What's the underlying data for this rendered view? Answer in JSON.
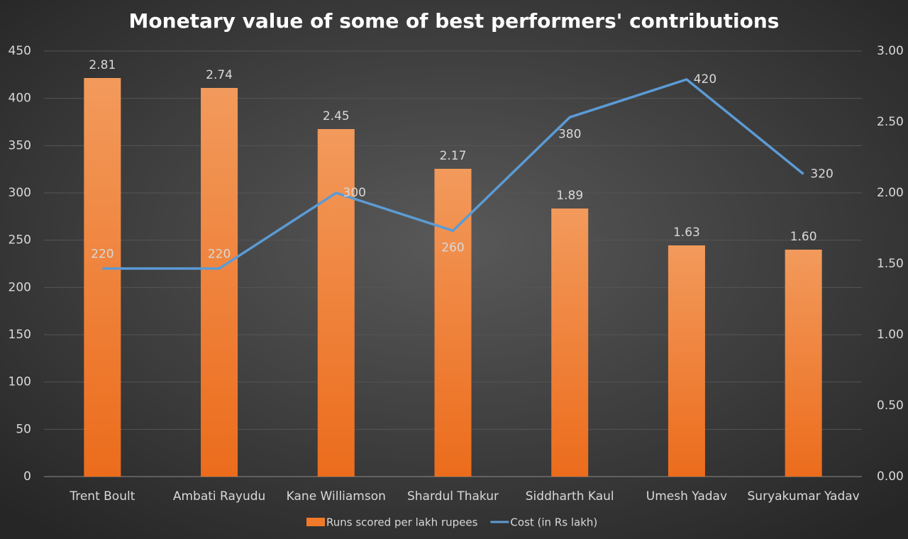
{
  "chart_data": {
    "type": "bar-line",
    "title": "Monetary value of some of best performers' contributions",
    "categories": [
      "Trent Boult",
      "Ambati Rayudu",
      "Kane Williamson",
      "Shardul Thakur",
      "Siddharth Kaul",
      "Umesh Yadav",
      "Suryakumar Yadav"
    ],
    "series": [
      {
        "name": "Runs scored per lakh rupees",
        "type": "bar",
        "axis": "y2",
        "color": "#f07a28",
        "values": [
          2.81,
          2.74,
          2.45,
          2.17,
          1.89,
          1.63,
          1.6
        ],
        "value_labels": [
          "2.81",
          "2.74",
          "2.45",
          "2.17",
          "1.89",
          "1.63",
          "1.60"
        ]
      },
      {
        "name": "Cost (in Rs lakh)",
        "type": "line",
        "color": "#5b9bd5",
        "values": [
          220,
          220,
          300,
          260,
          380,
          420,
          320
        ]
      }
    ],
    "ylim": [
      0,
      450
    ],
    "yticks": [
      0,
      50,
      100,
      150,
      200,
      250,
      300,
      350,
      400,
      450
    ],
    "y2lim": [
      0,
      3
    ],
    "y2ticks": [
      {
        "value": 0,
        "label": "0.00"
      },
      {
        "value": 0.5,
        "label": "0.50"
      },
      {
        "value": 1,
        "label": "1.00"
      },
      {
        "value": 1.5,
        "label": "1.50"
      },
      {
        "value": 2,
        "label": "2.00"
      },
      {
        "value": 2.5,
        "label": "2.50"
      },
      {
        "value": 3,
        "label": "3.00"
      }
    ],
    "grid": true,
    "legend": "bottom"
  }
}
